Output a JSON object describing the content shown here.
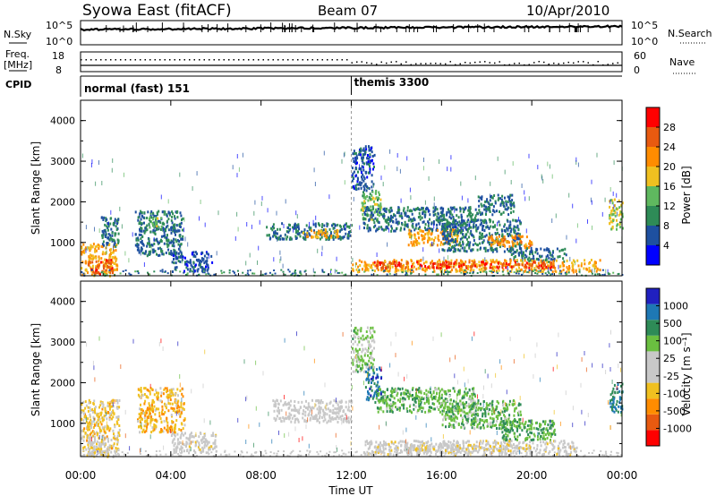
{
  "header": {
    "station": "Syowa East (fitACF)",
    "beam": "Beam 07",
    "date": "10/Apr/2010"
  },
  "noise_panel": {
    "left_label": "N.Sky",
    "left_ticks": [
      "10^5",
      "10^0"
    ],
    "right_label": "N.Search",
    "right_ticks": [
      "10^5",
      "10^0"
    ]
  },
  "freq_panel": {
    "left_label_1": "Freq.",
    "left_label_2": "[MHz]",
    "left_ticks": [
      "18",
      "8"
    ],
    "right_label": "Nave",
    "right_ticks": [
      "60",
      "0"
    ]
  },
  "cpid_panel": {
    "label": "CPID",
    "modes": [
      {
        "name": "normal (fast) 151",
        "start_hour": 0
      },
      {
        "name": "themis 3300",
        "start_hour": 12
      }
    ]
  },
  "colors": {
    "power_scale": [
      "#0000ff",
      "#1e50a0",
      "#2e8b57",
      "#5fb85f",
      "#f0c020",
      "#ff8c00",
      "#e85a10",
      "#ff0000"
    ],
    "velocity_scale": [
      "#ff0000",
      "#e85a10",
      "#ff8c00",
      "#f0c020",
      "#c8c8c8",
      "#c8c8c8",
      "#6abf40",
      "#2e8b57",
      "#1e78b4",
      "#2020c0"
    ]
  },
  "chart_data": [
    {
      "type": "heatmap",
      "name": "power",
      "ylabel": "Slant Range [km]",
      "ylim": [
        180,
        4500
      ],
      "yticks": [
        "1000",
        "2000",
        "3000",
        "4000"
      ],
      "xlim": [
        0,
        24
      ],
      "colorbar_label": "Power [dB]",
      "colorbar_ticks": [
        "28",
        "24",
        "20",
        "16",
        "12",
        "8",
        "4"
      ],
      "colorbar_range": [
        0,
        32
      ],
      "regions": [
        {
          "t0": 0.0,
          "t1": 1.6,
          "r0": 200,
          "r1": 1000,
          "value": 20
        },
        {
          "t0": 0.3,
          "t1": 1.4,
          "r0": 250,
          "r1": 600,
          "value": 26
        },
        {
          "t0": 0.9,
          "t1": 1.7,
          "r0": 900,
          "r1": 1650,
          "value": 8
        },
        {
          "t0": 2.4,
          "t1": 4.5,
          "r0": 700,
          "r1": 1800,
          "value": 8
        },
        {
          "t0": 3.0,
          "t1": 3.6,
          "r0": 1400,
          "r1": 1700,
          "value": 14
        },
        {
          "t0": 4.0,
          "t1": 5.8,
          "r0": 300,
          "r1": 800,
          "value": 6
        },
        {
          "t0": 8.2,
          "t1": 12.0,
          "r0": 1100,
          "r1": 1500,
          "value": 8
        },
        {
          "t0": 9.8,
          "t1": 11.4,
          "r0": 1150,
          "r1": 1350,
          "value": 20
        },
        {
          "t0": 12.0,
          "t1": 13.0,
          "r0": 2300,
          "r1": 3400,
          "value": 6
        },
        {
          "t0": 12.4,
          "t1": 13.3,
          "r0": 1600,
          "r1": 2300,
          "value": 14
        },
        {
          "t0": 12.5,
          "t1": 17.5,
          "r0": 1300,
          "r1": 1900,
          "value": 8
        },
        {
          "t0": 14.5,
          "t1": 16.8,
          "r0": 950,
          "r1": 1350,
          "value": 20
        },
        {
          "t0": 16.0,
          "t1": 19.5,
          "r0": 800,
          "r1": 1600,
          "value": 8
        },
        {
          "t0": 17.5,
          "t1": 19.2,
          "r0": 1700,
          "r1": 2200,
          "value": 8
        },
        {
          "t0": 18.0,
          "t1": 20.0,
          "r0": 900,
          "r1": 1200,
          "value": 22
        },
        {
          "t0": 19.0,
          "t1": 21.5,
          "r0": 550,
          "r1": 900,
          "value": 8
        },
        {
          "t0": 12.0,
          "t1": 23.0,
          "r0": 300,
          "r1": 600,
          "value": 20
        },
        {
          "t0": 13.0,
          "t1": 21.0,
          "r0": 400,
          "r1": 550,
          "value": 28
        },
        {
          "t0": 23.4,
          "t1": 24.0,
          "r0": 1300,
          "r1": 2100,
          "value": 16
        }
      ]
    },
    {
      "type": "heatmap",
      "name": "velocity",
      "ylabel": "Slant Range [km]",
      "ylim": [
        180,
        4500
      ],
      "yticks": [
        "1000",
        "2000",
        "3000",
        "4000"
      ],
      "xlabel": "Time UT",
      "xticks": [
        "00:00",
        "04:00",
        "08:00",
        "12:00",
        "16:00",
        "20:00",
        "00:00"
      ],
      "xlim": [
        0,
        24
      ],
      "colorbar_label": "Velocity [m s⁻¹]",
      "colorbar_ticks": [
        "1000",
        "500",
        "100",
        "25",
        "-25",
        "-100",
        "-500",
        "-1000"
      ],
      "colorbar_range": [
        -1200,
        1200
      ],
      "regions": [
        {
          "t0": 0.0,
          "t1": 1.7,
          "r0": 200,
          "r1": 1600,
          "value": -300
        },
        {
          "t0": 0.3,
          "t1": 1.3,
          "r0": 250,
          "r1": 700,
          "value": -100
        },
        {
          "t0": 2.5,
          "t1": 4.6,
          "r0": 800,
          "r1": 1900,
          "value": -400
        },
        {
          "t0": 4.0,
          "t1": 6.0,
          "r0": 300,
          "r1": 800,
          "value": -60
        },
        {
          "t0": 8.5,
          "t1": 12.0,
          "r0": 1050,
          "r1": 1600,
          "value": 0
        },
        {
          "t0": 12.0,
          "t1": 13.0,
          "r0": 2300,
          "r1": 3400,
          "value": 300
        },
        {
          "t0": 12.6,
          "t1": 13.3,
          "r0": 1600,
          "r1": 2400,
          "value": 800
        },
        {
          "t0": 13.0,
          "t1": 17.5,
          "r0": 1300,
          "r1": 1900,
          "value": 400
        },
        {
          "t0": 16.0,
          "t1": 19.5,
          "r0": 900,
          "r1": 1600,
          "value": 400
        },
        {
          "t0": 18.5,
          "t1": 21.0,
          "r0": 600,
          "r1": 1100,
          "value": 500
        },
        {
          "t0": 12.5,
          "t1": 22.0,
          "r0": 250,
          "r1": 600,
          "value": -80
        },
        {
          "t0": 14.0,
          "t1": 20.0,
          "r0": 350,
          "r1": 500,
          "value": -200
        },
        {
          "t0": 23.4,
          "t1": 24.0,
          "r0": 1300,
          "r1": 2000,
          "value": 700
        }
      ]
    }
  ]
}
